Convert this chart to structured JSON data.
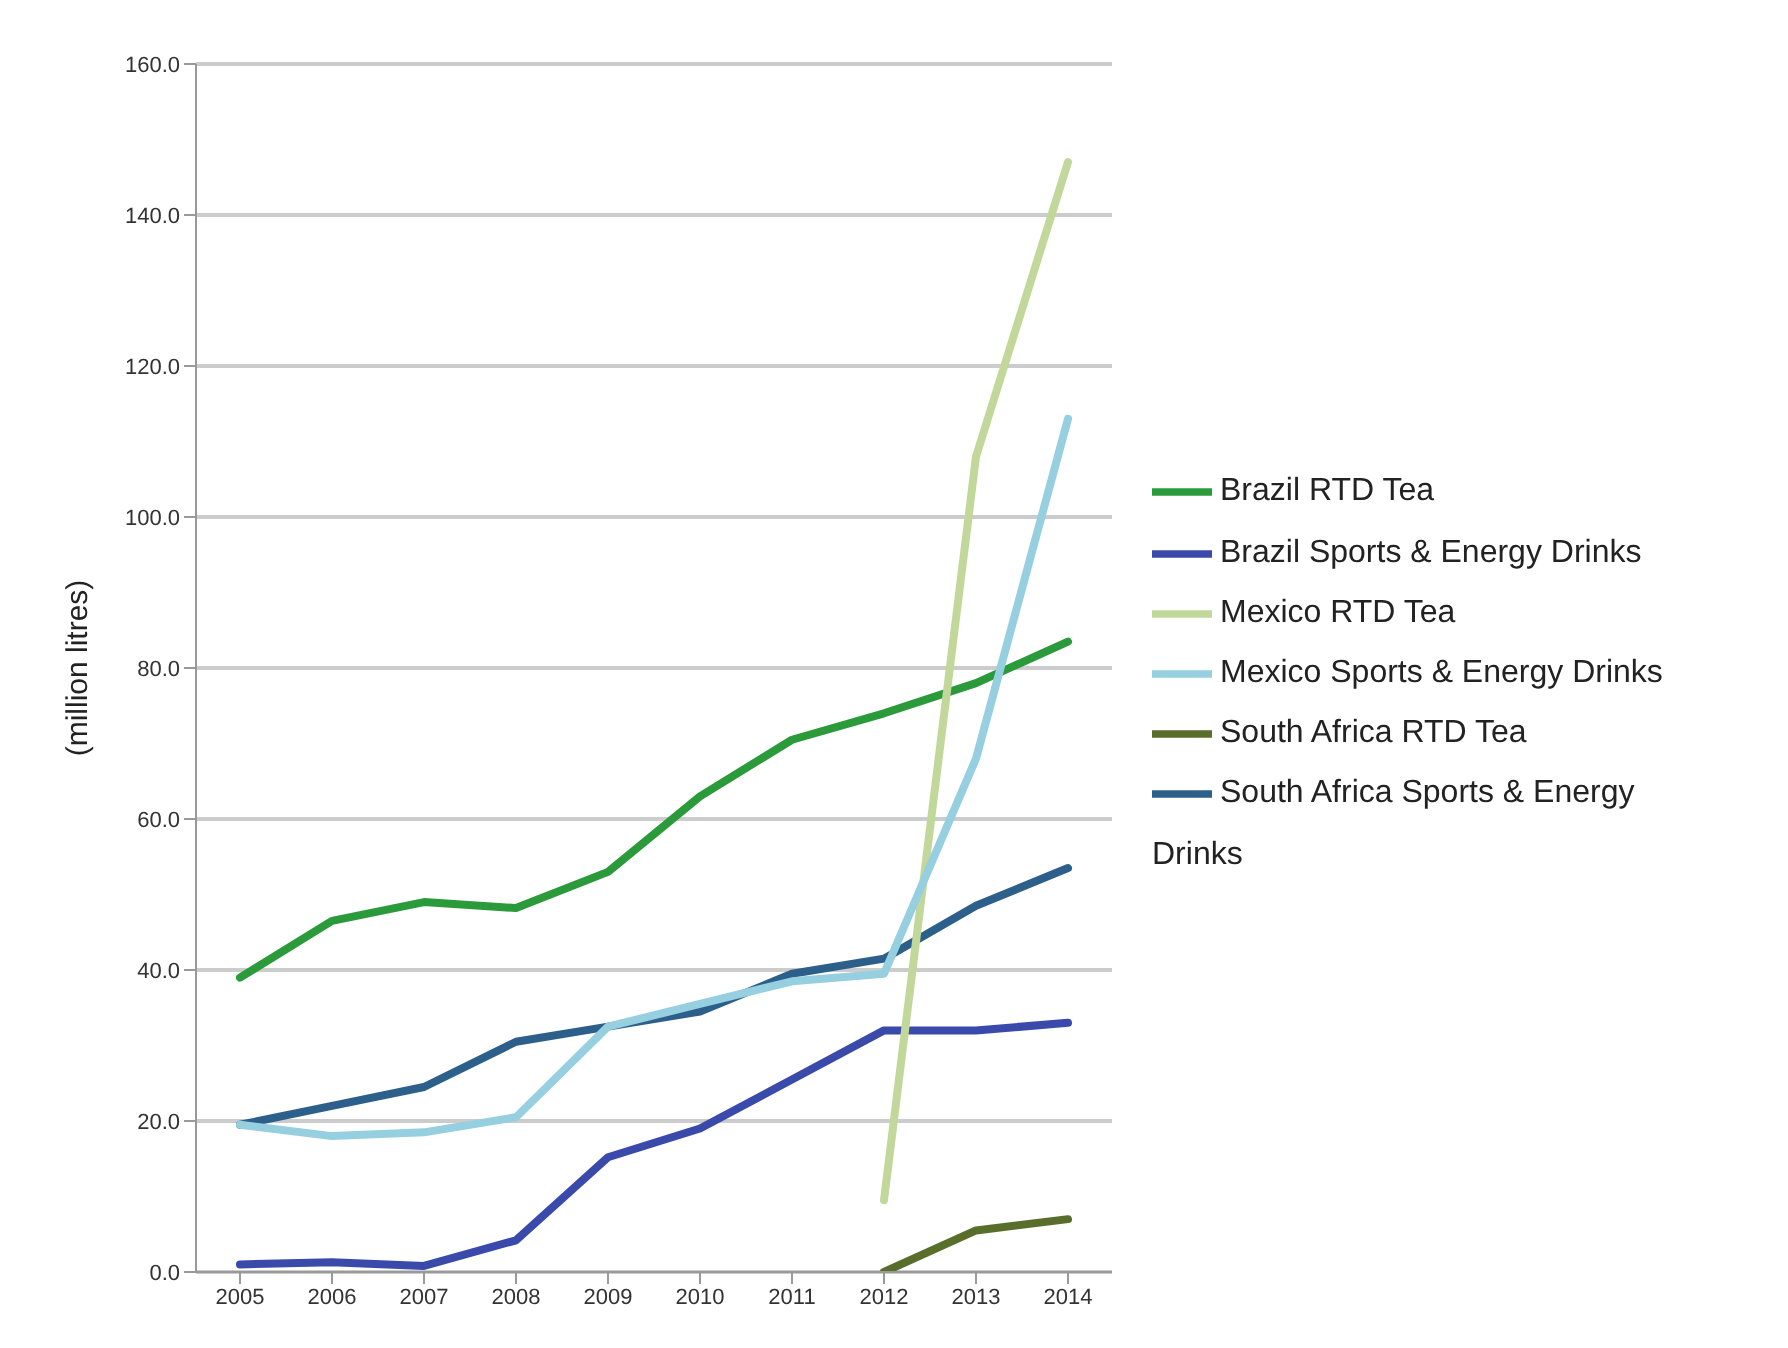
{
  "chart_data": {
    "type": "line",
    "ylabel": "(million litres)",
    "categories": [
      "2005",
      "2006",
      "2007",
      "2008",
      "2009",
      "2010",
      "2011",
      "2012",
      "2013",
      "2014"
    ],
    "series": [
      {
        "name": "South Africa RTD Tea",
        "color": "#5a6e2c",
        "values": [
          null,
          null,
          null,
          null,
          null,
          null,
          null,
          0,
          5.5,
          7
        ]
      },
      {
        "name": "South Africa Sports & Energy Drinks",
        "color": "#2c5f8a",
        "values": [
          19.5,
          22,
          24.5,
          30.5,
          32.5,
          34.5,
          39.5,
          41.5,
          48.5,
          53.5
        ]
      },
      {
        "name": "Brazil RTD Tea",
        "color": "#2a9a3a",
        "values": [
          39,
          46.5,
          49,
          48.2,
          53,
          63,
          70.5,
          74,
          78,
          83.5
        ]
      },
      {
        "name": "Brazil Sports & Energy Drinks",
        "color": "#3a4aaa",
        "values": [
          1,
          1.3,
          0.8,
          4.2,
          15.2,
          19,
          25.5,
          32,
          32,
          33
        ]
      },
      {
        "name": "Mexico RTD Tea",
        "color": "#c2d89a",
        "values": [
          null,
          null,
          null,
          null,
          null,
          null,
          null,
          9.5,
          108,
          147
        ]
      },
      {
        "name": "Mexico Sports & Energy Drinks",
        "color": "#96cfe0",
        "values": [
          19.5,
          18,
          18.5,
          20.5,
          32.5,
          35.5,
          38.5,
          39.5,
          68,
          113
        ]
      }
    ],
    "ylim": [
      0,
      160
    ],
    "yticks": [
      {
        "value": 0,
        "label": "0.0"
      },
      {
        "value": 20,
        "label": "20.0"
      },
      {
        "value": 40,
        "label": "40.0"
      },
      {
        "value": 60,
        "label": "60.0"
      },
      {
        "value": 80,
        "label": "80.0"
      },
      {
        "value": 100,
        "label": "100.0"
      },
      {
        "value": 120,
        "label": "120.0"
      },
      {
        "value": 140,
        "label": "140.0"
      },
      {
        "value": 160,
        "label": "160.0"
      }
    ],
    "grid": "y",
    "legend": "right",
    "marker": "none",
    "line_style": "solid"
  }
}
